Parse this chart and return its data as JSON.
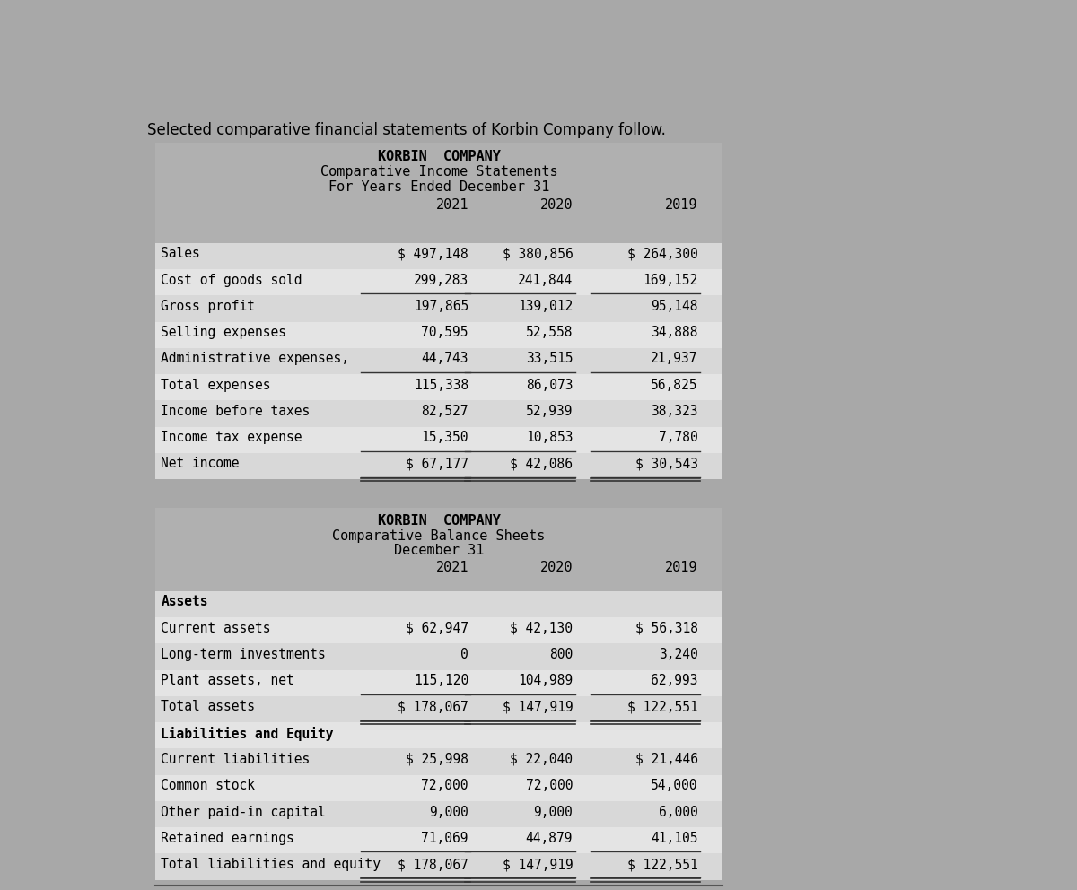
{
  "page_title": "Selected comparative financial statements of Korbin Company follow.",
  "income_statement": {
    "title1": "KORBIN  COMPANY",
    "title2": "Comparative Income Statements",
    "title3": "For Years Ended December 31",
    "years": [
      "2021",
      "2020",
      "2019"
    ],
    "rows": [
      {
        "label": "Sales",
        "vals": [
          "$ 497,148",
          "$ 380,856",
          "$ 264,300"
        ],
        "ul_below": false,
        "double": false,
        "extra_space_above": false
      },
      {
        "label": "Cost of goods sold",
        "vals": [
          "299,283",
          "241,844",
          "169,152"
        ],
        "ul_below": true,
        "double": false,
        "extra_space_above": false
      },
      {
        "label": "Gross profit",
        "vals": [
          "197,865",
          "139,012",
          "95,148"
        ],
        "ul_below": false,
        "double": false,
        "extra_space_above": false
      },
      {
        "label": "Selling expenses",
        "vals": [
          "70,595",
          "52,558",
          "34,888"
        ],
        "ul_below": false,
        "double": false,
        "extra_space_above": false
      },
      {
        "label": "Administrative expenses,",
        "vals": [
          "44,743",
          "33,515",
          "21,937"
        ],
        "ul_below": true,
        "double": false,
        "extra_space_above": false
      },
      {
        "label": "Total expenses",
        "vals": [
          "115,338",
          "86,073",
          "56,825"
        ],
        "ul_below": false,
        "double": false,
        "extra_space_above": false
      },
      {
        "label": "Income before taxes",
        "vals": [
          "82,527",
          "52,939",
          "38,323"
        ],
        "ul_below": false,
        "double": false,
        "extra_space_above": false
      },
      {
        "label": "Income tax expense",
        "vals": [
          "15,350",
          "10,853",
          "7,780"
        ],
        "ul_below": true,
        "double": false,
        "extra_space_above": false
      },
      {
        "label": "Net income",
        "vals": [
          "$ 67,177",
          "$ 42,086",
          "$ 30,543"
        ],
        "ul_below": true,
        "double": true,
        "extra_space_above": true
      }
    ]
  },
  "balance_sheet": {
    "title1": "KORBIN  COMPANY",
    "title2": "Comparative Balance Sheets",
    "title3": "December 31",
    "years": [
      "2021",
      "2020",
      "2019"
    ],
    "rows": [
      {
        "label": "Assets",
        "vals": [
          "",
          "",
          ""
        ],
        "ul_below": false,
        "double": false,
        "bold": true,
        "extra_space_above": false
      },
      {
        "label": "Current assets",
        "vals": [
          "$ 62,947",
          "$ 42,130",
          "$ 56,318"
        ],
        "ul_below": false,
        "double": false,
        "bold": false,
        "extra_space_above": false
      },
      {
        "label": "Long-term investments",
        "vals": [
          "0",
          "800",
          "3,240"
        ],
        "ul_below": false,
        "double": false,
        "bold": false,
        "extra_space_above": false
      },
      {
        "label": "Plant assets, net",
        "vals": [
          "115,120",
          "104,989",
          "62,993"
        ],
        "ul_below": true,
        "double": false,
        "bold": false,
        "extra_space_above": false
      },
      {
        "label": "Total assets",
        "vals": [
          "$ 178,067",
          "$ 147,919",
          "$ 122,551"
        ],
        "ul_below": true,
        "double": true,
        "bold": false,
        "extra_space_above": false
      },
      {
        "label": "Liabilities and Equity",
        "vals": [
          "",
          "",
          ""
        ],
        "ul_below": false,
        "double": false,
        "bold": true,
        "extra_space_above": true
      },
      {
        "label": "Current liabilities",
        "vals": [
          "$ 25,998",
          "$ 22,040",
          "$ 21,446"
        ],
        "ul_below": false,
        "double": false,
        "bold": false,
        "extra_space_above": false
      },
      {
        "label": "Common stock",
        "vals": [
          "72,000",
          "72,000",
          "54,000"
        ],
        "ul_below": false,
        "double": false,
        "bold": false,
        "extra_space_above": false
      },
      {
        "label": "Other paid-in capital",
        "vals": [
          "9,000",
          "9,000",
          "6,000"
        ],
        "ul_below": false,
        "double": false,
        "bold": false,
        "extra_space_above": false
      },
      {
        "label": "Retained earnings",
        "vals": [
          "71,069",
          "44,879",
          "41,105"
        ],
        "ul_below": true,
        "double": false,
        "bold": false,
        "extra_space_above": false
      },
      {
        "label": "Total liabilities and equity",
        "vals": [
          "$ 178,067",
          "$ 147,919",
          "$ 122,551"
        ],
        "ul_below": true,
        "double": true,
        "bold": false,
        "extra_space_above": false
      }
    ]
  },
  "fig_bg": "#a8a8a8",
  "tbl_header_bg": "#b0b0b0",
  "tbl_row_bg_odd": "#d8d8d8",
  "tbl_row_bg_even": "#e4e4e4"
}
